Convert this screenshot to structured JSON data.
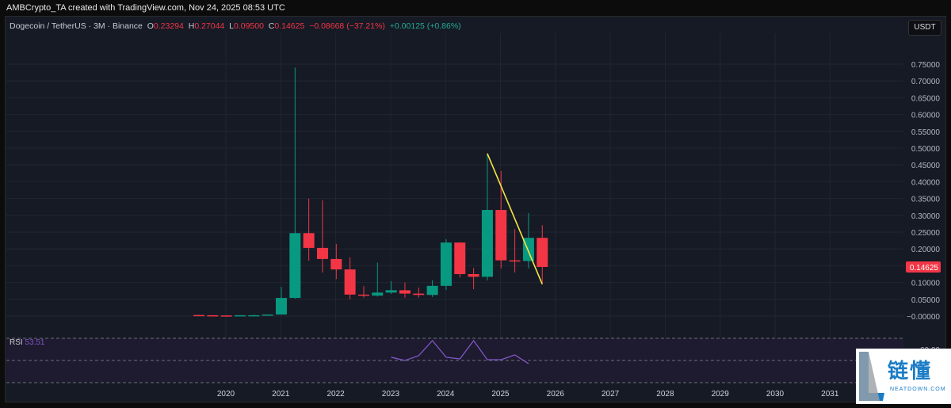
{
  "watermark": "AMBCrypto_TA created with TradingView.com, Nov 24, 2025 08:53 UTC",
  "legend": {
    "symbol": "Dogecoin / TetherUS · 3M · Binance",
    "o_label": "O",
    "o": "0.23294",
    "h_label": "H",
    "h": "0.27044",
    "l_label": "L",
    "l": "0.09500",
    "c_label": "C",
    "c": "0.14625",
    "change": "−0.08668 (−37.21%)",
    "extra": "+0.00125 (+0.86%)"
  },
  "currency": "USDT",
  "price_axis": [
    "0.75000",
    "0.70000",
    "0.65000",
    "0.60000",
    "0.55000",
    "0.50000",
    "0.45000",
    "0.40000",
    "0.35000",
    "0.30000",
    "0.25000",
    "0.20000",
    "0.10000",
    "0.05000",
    "−0.00000"
  ],
  "last_price": "0.14625",
  "rsi": {
    "label": "RSI",
    "value": "53.51",
    "axis_label": "60.00"
  },
  "logo": {
    "cn": "链懂",
    "en": "NEATDOWN.COM"
  },
  "colors": {
    "up": "#089981",
    "down": "#f23645",
    "trendline": "#f5e642",
    "rsi": "#7e57c2"
  },
  "chart_data": {
    "type": "candlestick",
    "interval": "3M",
    "x_ticks": [
      "2020",
      "2021",
      "2022",
      "2023",
      "2024",
      "2025",
      "2026",
      "2027",
      "2028",
      "2029",
      "2030",
      "2031"
    ],
    "ylim": [
      0,
      0.75
    ],
    "candles": [
      {
        "q": "2019-Q3",
        "o": 0.0032,
        "h": 0.0035,
        "l": 0.0022,
        "c": 0.0025
      },
      {
        "q": "2019-Q4",
        "o": 0.0025,
        "h": 0.0028,
        "l": 0.002,
        "c": 0.002
      },
      {
        "q": "2020-Q1",
        "o": 0.002,
        "h": 0.0027,
        "l": 0.0011,
        "c": 0.0018
      },
      {
        "q": "2020-Q2",
        "o": 0.0018,
        "h": 0.003,
        "l": 0.0017,
        "c": 0.0025
      },
      {
        "q": "2020-Q3",
        "o": 0.0025,
        "h": 0.004,
        "l": 0.0024,
        "c": 0.0026
      },
      {
        "q": "2020-Q4",
        "o": 0.0026,
        "h": 0.005,
        "l": 0.0025,
        "c": 0.0047
      },
      {
        "q": "2021-Q1",
        "o": 0.0047,
        "h": 0.087,
        "l": 0.0046,
        "c": 0.054
      },
      {
        "q": "2021-Q2",
        "o": 0.054,
        "h": 0.74,
        "l": 0.052,
        "c": 0.247
      },
      {
        "q": "2021-Q3",
        "o": 0.247,
        "h": 0.35,
        "l": 0.165,
        "c": 0.203
      },
      {
        "q": "2021-Q4",
        "o": 0.203,
        "h": 0.345,
        "l": 0.13,
        "c": 0.17
      },
      {
        "q": "2022-Q1",
        "o": 0.17,
        "h": 0.215,
        "l": 0.11,
        "c": 0.139
      },
      {
        "q": "2022-Q2",
        "o": 0.139,
        "h": 0.175,
        "l": 0.05,
        "c": 0.064
      },
      {
        "q": "2022-Q3",
        "o": 0.064,
        "h": 0.089,
        "l": 0.055,
        "c": 0.061
      },
      {
        "q": "2022-Q4",
        "o": 0.061,
        "h": 0.159,
        "l": 0.058,
        "c": 0.07
      },
      {
        "q": "2023-Q1",
        "o": 0.07,
        "h": 0.104,
        "l": 0.066,
        "c": 0.077
      },
      {
        "q": "2023-Q2",
        "o": 0.077,
        "h": 0.1,
        "l": 0.055,
        "c": 0.067
      },
      {
        "q": "2023-Q3",
        "o": 0.067,
        "h": 0.085,
        "l": 0.055,
        "c": 0.063
      },
      {
        "q": "2023-Q4",
        "o": 0.063,
        "h": 0.107,
        "l": 0.057,
        "c": 0.09
      },
      {
        "q": "2024-Q1",
        "o": 0.09,
        "h": 0.229,
        "l": 0.078,
        "c": 0.219
      },
      {
        "q": "2024-Q2",
        "o": 0.219,
        "h": 0.22,
        "l": 0.115,
        "c": 0.125
      },
      {
        "q": "2024-Q3",
        "o": 0.125,
        "h": 0.143,
        "l": 0.08,
        "c": 0.117
      },
      {
        "q": "2024-Q4",
        "o": 0.117,
        "h": 0.484,
        "l": 0.106,
        "c": 0.316
      },
      {
        "q": "2025-Q1",
        "o": 0.316,
        "h": 0.432,
        "l": 0.142,
        "c": 0.166
      },
      {
        "q": "2025-Q2",
        "o": 0.166,
        "h": 0.259,
        "l": 0.13,
        "c": 0.164
      },
      {
        "q": "2025-Q3",
        "o": 0.164,
        "h": 0.307,
        "l": 0.142,
        "c": 0.233
      },
      {
        "q": "2025-Q4",
        "o": 0.23294,
        "h": 0.27044,
        "l": 0.095,
        "c": 0.14625
      }
    ],
    "trendline": [
      {
        "q": "2024-Q4",
        "price": 0.484
      },
      {
        "q": "2025-Q4",
        "price": 0.095
      }
    ],
    "rsi_series": {
      "start": "2023-Q1",
      "values": [
        52.9,
        50,
        54.3,
        67.9,
        52.9,
        51.4,
        67.9,
        50.7,
        50.7,
        55,
        47.1
      ]
    },
    "rsi_bands": [
      70,
      50,
      30
    ]
  }
}
